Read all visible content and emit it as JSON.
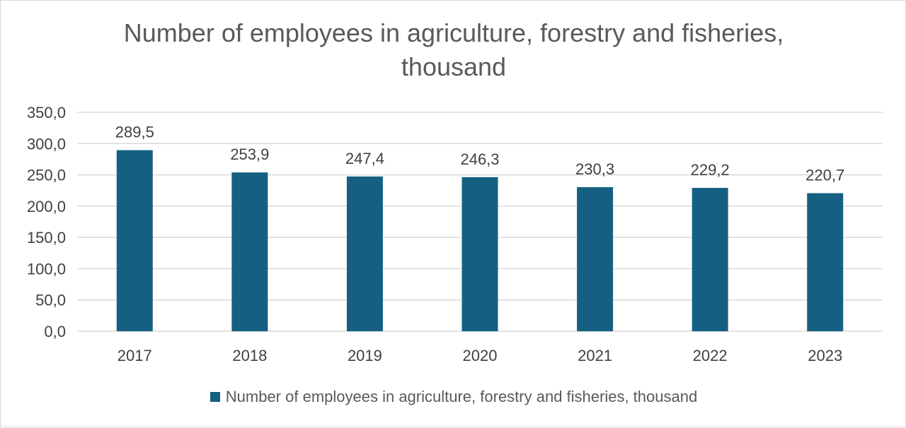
{
  "chart_data": {
    "type": "bar",
    "title": "Number of employees in agriculture, forestry and fisheries, thousand",
    "categories": [
      "2017",
      "2018",
      "2019",
      "2020",
      "2021",
      "2022",
      "2023"
    ],
    "series": [
      {
        "name": "Number of employees in agriculture, forestry and fisheries, thousand",
        "values": [
          289.5,
          253.9,
          247.4,
          246.3,
          230.3,
          229.2,
          220.7
        ],
        "labels": [
          "289,5",
          "253,9",
          "247,4",
          "246,3",
          "230,3",
          "229,2",
          "220,7"
        ],
        "color": "#156082"
      }
    ],
    "ylim": [
      0,
      350
    ],
    "y_ticks": [
      0,
      50,
      100,
      150,
      200,
      250,
      300,
      350
    ],
    "y_tick_labels": [
      "0,0",
      "50,0",
      "100,0",
      "150,0",
      "200,0",
      "250,0",
      "300,0",
      "350,0"
    ],
    "grid": true,
    "legend_position": "bottom",
    "xlabel": "",
    "ylabel": ""
  }
}
